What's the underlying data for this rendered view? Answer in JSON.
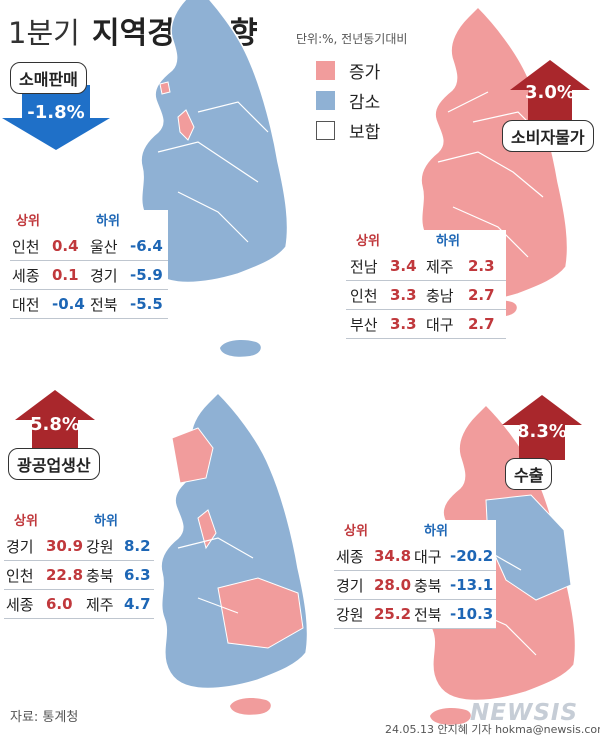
{
  "header": {
    "quarter": "1분기",
    "title": "지역경제동향",
    "unit": "단위:%, 전년동기대비"
  },
  "legend": [
    {
      "label": "증가",
      "color": "#f19c9c"
    },
    {
      "label": "감소",
      "color": "#8fb1d4"
    },
    {
      "label": "보합",
      "color": "#ffffff"
    }
  ],
  "colors": {
    "increase": "#f19c9c",
    "decrease": "#8fb1d4",
    "arrow_up": "#a9272c",
    "arrow_down": "#1f70c8"
  },
  "panels": {
    "retail": {
      "label": "소매판매",
      "value": "-1.8%",
      "direction": "down",
      "top_header": "상위",
      "bottom_header": "하위",
      "rows": [
        {
          "top_name": "인천",
          "top_value": "0.4",
          "bottom_name": "울산",
          "bottom_value": "-6.4"
        },
        {
          "top_name": "세종",
          "top_value": "0.1",
          "bottom_name": "경기",
          "bottom_value": "-5.9"
        },
        {
          "top_name": "대전",
          "top_value": "-0.4",
          "bottom_name": "전북",
          "bottom_value": "-5.5"
        }
      ]
    },
    "cpi": {
      "label": "소비자물가",
      "value": "3.0%",
      "direction": "up",
      "top_header": "상위",
      "bottom_header": "하위",
      "rows": [
        {
          "top_name": "전남",
          "top_value": "3.4",
          "bottom_name": "제주",
          "bottom_value": "2.3"
        },
        {
          "top_name": "인천",
          "top_value": "3.3",
          "bottom_name": "충남",
          "bottom_value": "2.7"
        },
        {
          "top_name": "부산",
          "top_value": "3.3",
          "bottom_name": "대구",
          "bottom_value": "2.7"
        }
      ]
    },
    "mining": {
      "label": "광공업생산",
      "value": "5.8%",
      "direction": "up",
      "top_header": "상위",
      "bottom_header": "하위",
      "rows": [
        {
          "top_name": "경기",
          "top_value": "30.9",
          "bottom_name": "강원",
          "bottom_value": "8.2"
        },
        {
          "top_name": "인천",
          "top_value": "22.8",
          "bottom_name": "충북",
          "bottom_value": "6.3"
        },
        {
          "top_name": "세종",
          "top_value": "6.0",
          "bottom_name": "제주",
          "bottom_value": "4.7"
        }
      ]
    },
    "export": {
      "label": "수출",
      "value": "8.3%",
      "direction": "up",
      "top_header": "상위",
      "bottom_header": "하위",
      "rows": [
        {
          "top_name": "세종",
          "top_value": "34.8",
          "bottom_name": "대구",
          "bottom_value": "-20.2"
        },
        {
          "top_name": "경기",
          "top_value": "28.0",
          "bottom_name": "충북",
          "bottom_value": "-13.1"
        },
        {
          "top_name": "강원",
          "top_value": "25.2",
          "bottom_name": "전북",
          "bottom_value": "-10.3"
        }
      ]
    }
  },
  "footer": {
    "source": "자료: 통계청",
    "credit": "24.05.13 안지혜 기자 hokma@newsis.com",
    "logo": "NEWSIS"
  }
}
